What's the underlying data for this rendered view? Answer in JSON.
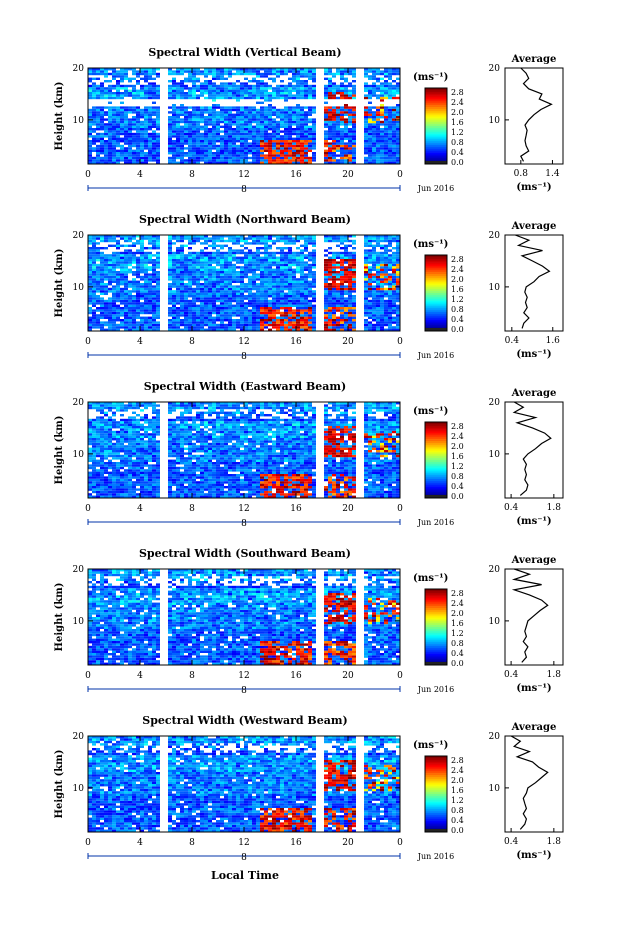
{
  "figure": {
    "xlabel": "Local Time",
    "date_label": "Jun 2016",
    "day_label": "8",
    "ylabel": "Height (km)",
    "unit_label": "(ms⁻¹)",
    "avg_title": "Average",
    "avg_xlabel": "(ms⁻¹)"
  },
  "chart_data": [
    {
      "type": "heatmap",
      "title": "Spectral Width (Vertical Beam)",
      "x_ticks": [
        "0",
        "4",
        "8",
        "12",
        "16",
        "20",
        "0"
      ],
      "xlim": [
        0,
        24
      ],
      "y_ticks": [
        "10",
        "20"
      ],
      "ylim": [
        1.5,
        20
      ],
      "colorbar_ticks": [
        "2.8",
        "2.4",
        "2.0",
        "1.6",
        "1.2",
        "0.8",
        "0.4",
        "0.0"
      ],
      "color_range": [
        0,
        3
      ],
      "data_gaps_hours": [
        [
          5.8,
          6.1
        ],
        [
          17.6,
          18.0
        ],
        [
          20.7,
          21.0
        ]
      ],
      "avg_profile": {
        "type": "line",
        "title": "Average",
        "x_ticks": [
          "0.8",
          "1.4"
        ],
        "xlim": [
          0.5,
          1.6
        ],
        "y_ticks": [
          "10",
          "20"
        ],
        "ylim": [
          1.5,
          20
        ],
        "height_km": [
          2,
          3,
          4,
          5,
          6,
          7,
          8,
          9,
          10,
          11,
          12,
          13,
          14,
          15,
          16,
          17,
          18,
          19,
          20
        ],
        "width": [
          0.85,
          0.8,
          0.95,
          0.9,
          0.88,
          0.9,
          0.92,
          0.88,
          0.95,
          1.05,
          1.18,
          1.38,
          1.15,
          1.2,
          0.95,
          0.85,
          0.95,
          0.9,
          0.8
        ]
      }
    },
    {
      "type": "heatmap",
      "title": "Spectral Width (Northward Beam)",
      "x_ticks": [
        "0",
        "4",
        "8",
        "12",
        "16",
        "20",
        "0"
      ],
      "xlim": [
        0,
        24
      ],
      "y_ticks": [
        "10",
        "20"
      ],
      "ylim": [
        1.5,
        20
      ],
      "colorbar_ticks": [
        "2.8",
        "2.4",
        "2.0",
        "1.6",
        "1.2",
        "0.8",
        "0.4",
        "0.0"
      ],
      "color_range": [
        0,
        3
      ],
      "data_gaps_hours": [
        [
          5.8,
          6.1
        ],
        [
          17.6,
          18.0
        ],
        [
          20.7,
          21.0
        ]
      ],
      "avg_profile": {
        "type": "line",
        "title": "Average",
        "x_ticks": [
          "0.4",
          "1.6"
        ],
        "xlim": [
          0.2,
          1.9
        ],
        "y_ticks": [
          "10",
          "20"
        ],
        "ylim": [
          1.5,
          20
        ],
        "height_km": [
          2,
          3,
          4,
          5,
          6,
          7,
          8,
          9,
          10,
          11,
          12,
          13,
          14,
          15,
          16,
          17,
          18,
          19,
          20
        ],
        "width": [
          0.7,
          0.75,
          0.9,
          0.75,
          0.85,
          0.8,
          0.85,
          0.78,
          0.82,
          1.05,
          1.2,
          1.5,
          1.3,
          1.0,
          0.7,
          1.3,
          0.6,
          0.9,
          0.5
        ]
      }
    },
    {
      "type": "heatmap",
      "title": "Spectral Width (Eastward Beam)",
      "x_ticks": [
        "0",
        "4",
        "8",
        "12",
        "16",
        "20",
        "0"
      ],
      "xlim": [
        0,
        24
      ],
      "y_ticks": [
        "10",
        "20"
      ],
      "ylim": [
        1.5,
        20
      ],
      "colorbar_ticks": [
        "2.8",
        "2.4",
        "2.0",
        "1.6",
        "1.2",
        "0.8",
        "0.4",
        "0.0"
      ],
      "color_range": [
        0,
        3
      ],
      "data_gaps_hours": [
        [
          5.8,
          6.1
        ],
        [
          17.6,
          18.0
        ],
        [
          20.7,
          21.0
        ]
      ],
      "avg_profile": {
        "type": "line",
        "title": "Average",
        "x_ticks": [
          "0.4",
          "1.8"
        ],
        "xlim": [
          0.2,
          2.1
        ],
        "y_ticks": [
          "10",
          "20"
        ],
        "ylim": [
          1.5,
          20
        ],
        "height_km": [
          2,
          3,
          4,
          5,
          6,
          7,
          8,
          9,
          10,
          11,
          12,
          13,
          14,
          15,
          16,
          17,
          18,
          19,
          20
        ],
        "width": [
          0.7,
          0.9,
          0.95,
          0.85,
          0.9,
          0.85,
          0.9,
          0.8,
          0.95,
          1.2,
          1.4,
          1.7,
          1.5,
          1.1,
          0.6,
          1.2,
          0.5,
          0.8,
          0.5
        ]
      }
    },
    {
      "type": "heatmap",
      "title": "Spectral Width (Southward Beam)",
      "x_ticks": [
        "0",
        "4",
        "8",
        "12",
        "16",
        "20",
        "0"
      ],
      "xlim": [
        0,
        24
      ],
      "y_ticks": [
        "10",
        "20"
      ],
      "ylim": [
        1.5,
        20
      ],
      "colorbar_ticks": [
        "2.8",
        "2.4",
        "2.0",
        "1.6",
        "1.2",
        "0.8",
        "0.4",
        "0.0"
      ],
      "color_range": [
        0,
        3
      ],
      "data_gaps_hours": [
        [
          5.8,
          6.1
        ],
        [
          17.6,
          18.0
        ],
        [
          20.7,
          21.0
        ]
      ],
      "avg_profile": {
        "type": "line",
        "title": "Average",
        "x_ticks": [
          "0.4",
          "1.8"
        ],
        "xlim": [
          0.2,
          2.1
        ],
        "y_ticks": [
          "10",
          "20"
        ],
        "ylim": [
          1.5,
          20
        ],
        "height_km": [
          2,
          3,
          4,
          5,
          6,
          7,
          8,
          9,
          10,
          11,
          12,
          13,
          14,
          15,
          16,
          17,
          18,
          19,
          20
        ],
        "width": [
          0.75,
          0.9,
          0.85,
          0.95,
          0.8,
          0.9,
          0.85,
          0.9,
          0.95,
          1.15,
          1.35,
          1.6,
          1.4,
          1.0,
          0.5,
          1.4,
          0.5,
          1.0,
          0.5
        ]
      }
    },
    {
      "type": "heatmap",
      "title": "Spectral Width (Westward Beam)",
      "x_ticks": [
        "0",
        "4",
        "8",
        "12",
        "16",
        "20",
        "0"
      ],
      "xlim": [
        0,
        24
      ],
      "y_ticks": [
        "10",
        "20"
      ],
      "ylim": [
        1.5,
        20
      ],
      "colorbar_ticks": [
        "2.8",
        "2.4",
        "2.0",
        "1.6",
        "1.2",
        "0.8",
        "0.4",
        "0.0"
      ],
      "color_range": [
        0,
        3
      ],
      "data_gaps_hours": [
        [
          5.8,
          6.1
        ],
        [
          17.6,
          18.0
        ],
        [
          20.7,
          21.0
        ]
      ],
      "avg_profile": {
        "type": "line",
        "title": "Average",
        "x_ticks": [
          "0.4",
          "1.8"
        ],
        "xlim": [
          0.2,
          2.1
        ],
        "y_ticks": [
          "10",
          "20"
        ],
        "ylim": [
          1.5,
          20
        ],
        "height_km": [
          2,
          3,
          4,
          5,
          6,
          7,
          8,
          9,
          10,
          11,
          12,
          13,
          14,
          15,
          16,
          17,
          18,
          19,
          20
        ],
        "width": [
          0.7,
          0.85,
          0.9,
          0.8,
          0.9,
          0.85,
          0.8,
          0.9,
          0.95,
          1.2,
          1.4,
          1.6,
          1.3,
          1.1,
          0.6,
          1.0,
          0.5,
          0.7,
          0.4
        ]
      }
    }
  ]
}
